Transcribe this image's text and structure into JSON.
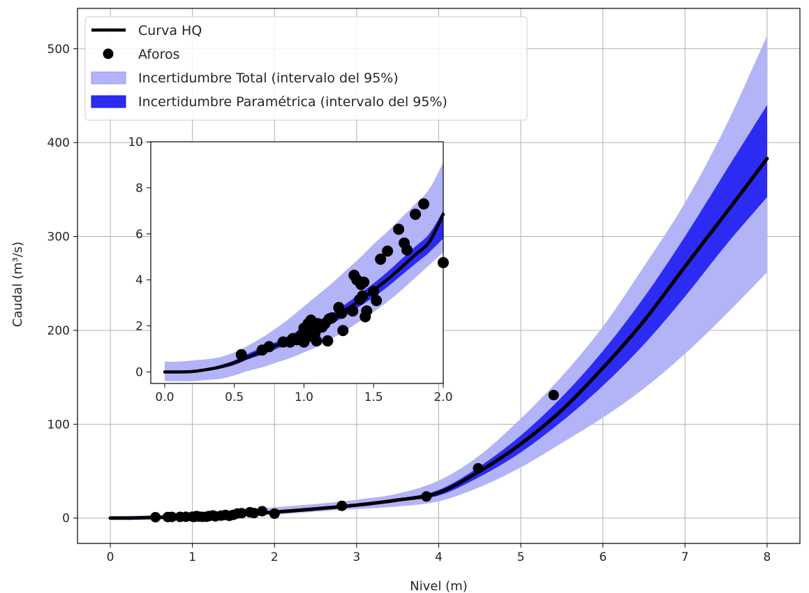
{
  "chart_data": [
    {
      "id": "main",
      "type": "line",
      "xlabel": "Nivel (m)",
      "ylabel": "Caudal (m³/s)",
      "xlim": [
        -0.4,
        8.4
      ],
      "ylim": [
        -27,
        543
      ],
      "xticks": [
        0,
        1,
        2,
        3,
        4,
        5,
        6,
        7,
        8
      ],
      "yticks": [
        0,
        100,
        200,
        300,
        400,
        500
      ],
      "grid": true,
      "legend_placement": "upper-left",
      "legend": [
        {
          "label": "Curva HQ",
          "kind": "line",
          "color": "#000000"
        },
        {
          "label": "Aforos",
          "kind": "marker",
          "color": "#000000"
        },
        {
          "label": "Incertidumbre Total (intervalo del 95%)",
          "kind": "patch",
          "color": "#b3b3f7"
        },
        {
          "label": "Incertidumbre Paramétrica (intervalo del 95%)",
          "kind": "patch",
          "color": "#2b2bf3"
        }
      ],
      "series": [
        {
          "name": "Incertidumbre Total (intervalo del 95%)",
          "kind": "band",
          "color": "#b3b3f7",
          "x": [
            0,
            0.25,
            0.5,
            1,
            1.5,
            2,
            2.5,
            3,
            3.5,
            4,
            4.5,
            5,
            5.5,
            6,
            6.5,
            7,
            7.5,
            8
          ],
          "lower": [
            -1,
            -1,
            0,
            0.6,
            1.7,
            3.6,
            6.8,
            9.6,
            12.3,
            17.8,
            33,
            54,
            80,
            107,
            138,
            175,
            217,
            262
          ],
          "upper": [
            2,
            2.5,
            3,
            5,
            8,
            11.5,
            15,
            19.5,
            26,
            40,
            67,
            106,
            151,
            204,
            268,
            336,
            418,
            514
          ]
        },
        {
          "name": "Incertidumbre Paramétrica (intervalo del 95%)",
          "kind": "band",
          "color": "#2b2bf3",
          "x": [
            0,
            0.25,
            0.5,
            1,
            1.5,
            2,
            2.5,
            3,
            3.5,
            4,
            4.5,
            5,
            5.5,
            6,
            6.5,
            7,
            7.5,
            8
          ],
          "lower": [
            0,
            0,
            0.3,
            1.3,
            3.2,
            5.6,
            9,
            12.8,
            17.8,
            24,
            44,
            70,
            103,
            141,
            185,
            236,
            291,
            342
          ],
          "upper": [
            0,
            0.2,
            0.6,
            1.8,
            4.1,
            7,
            10.6,
            14.8,
            20.6,
            30,
            55,
            88,
            129,
            178,
            235,
            300,
            370,
            440
          ]
        },
        {
          "name": "Curva HQ",
          "kind": "line",
          "color": "#000000",
          "x": [
            0,
            0.25,
            0.5,
            1,
            1.5,
            2,
            2.5,
            3,
            3.5,
            4,
            4.5,
            5,
            5.5,
            6,
            6.5,
            7,
            7.5,
            8
          ],
          "y": [
            0,
            0,
            0.5,
            1.6,
            3.6,
            6.3,
            9.8,
            13.8,
            19.2,
            27,
            50,
            79,
            115,
            160,
            210,
            268,
            325,
            383
          ]
        },
        {
          "name": "Aforos",
          "kind": "scatter",
          "color": "#000000",
          "points": [
            [
              0.55,
              0.9
            ],
            [
              0.7,
              1.1
            ],
            [
              0.75,
              1.2
            ],
            [
              0.85,
              1.3
            ],
            [
              0.92,
              1.4
            ],
            [
              1.0,
              1.5
            ],
            [
              1.02,
              1.2
            ],
            [
              1.05,
              2.1
            ],
            [
              1.08,
              1.6
            ],
            [
              1.12,
              1.3
            ],
            [
              1.17,
              1.4
            ],
            [
              1.2,
              2.1
            ],
            [
              1.25,
              2.8
            ],
            [
              1.28,
              1.8
            ],
            [
              1.35,
              2.6
            ],
            [
              1.4,
              3.3
            ],
            [
              1.45,
              2.4
            ],
            [
              1.5,
              3.5
            ],
            [
              1.55,
              4.9
            ],
            [
              1.6,
              5.2
            ],
            [
              1.7,
              6.2
            ],
            [
              1.75,
              5.4
            ],
            [
              1.85,
              7.3
            ],
            [
              2.0,
              4.7
            ],
            [
              2.82,
              13
            ],
            [
              3.85,
              23
            ],
            [
              4.48,
              53
            ],
            [
              5.4,
              131
            ]
          ]
        }
      ]
    },
    {
      "id": "inset",
      "type": "line",
      "xlim": [
        -0.1,
        2.0
      ],
      "ylim": [
        -0.5,
        10
      ],
      "xticks": [
        0.0,
        0.5,
        1.0,
        1.5,
        2.0
      ],
      "xtick_labels": [
        "0.0",
        "0.5",
        "1.0",
        "1.5",
        "2.0"
      ],
      "yticks": [
        0,
        2,
        4,
        6,
        8,
        10
      ],
      "grid": false,
      "series": [
        {
          "name": "Incertidumbre Total (intervalo del 95%)",
          "kind": "band",
          "color": "#b3b3f7",
          "x": [
            0,
            0.1,
            0.2,
            0.3,
            0.4,
            0.5,
            0.6,
            0.7,
            0.8,
            0.9,
            1.0,
            1.1,
            1.2,
            1.3,
            1.4,
            1.5,
            1.6,
            1.7,
            1.8,
            1.9,
            2.0
          ],
          "lower": [
            -0.4,
            -0.4,
            -0.4,
            -0.35,
            -0.3,
            -0.15,
            0.05,
            0.2,
            0.4,
            0.6,
            0.85,
            1.1,
            1.45,
            1.8,
            2.2,
            2.6,
            3.05,
            3.55,
            4.1,
            4.65,
            5.2
          ],
          "upper": [
            0.45,
            0.45,
            0.5,
            0.55,
            0.65,
            0.85,
            1.15,
            1.5,
            1.9,
            2.35,
            2.85,
            3.35,
            3.85,
            4.4,
            4.95,
            5.55,
            6.1,
            6.7,
            7.3,
            7.95,
            9.1
          ]
        },
        {
          "name": "Incertidumbre Paramétrica (intervalo del 95%)",
          "kind": "band",
          "color": "#2b2bf3",
          "x": [
            0,
            0.1,
            0.2,
            0.3,
            0.4,
            0.5,
            0.6,
            0.7,
            0.8,
            0.9,
            1.0,
            1.1,
            1.2,
            1.3,
            1.4,
            1.5,
            1.6,
            1.7,
            1.8,
            1.9,
            2.0
          ],
          "lower": [
            0,
            0,
            0,
            0.05,
            0.15,
            0.3,
            0.55,
            0.75,
            1.0,
            1.25,
            1.5,
            1.8,
            2.1,
            2.45,
            2.85,
            3.25,
            3.7,
            4.2,
            4.7,
            5.2,
            5.8
          ],
          "upper": [
            0,
            0,
            0.05,
            0.15,
            0.3,
            0.5,
            0.8,
            1.05,
            1.3,
            1.6,
            1.9,
            2.2,
            2.55,
            2.95,
            3.4,
            3.85,
            4.35,
            4.9,
            5.45,
            6.0,
            7.0
          ]
        },
        {
          "name": "Curva HQ",
          "kind": "line",
          "color": "#000000",
          "x": [
            0,
            0.1,
            0.2,
            0.3,
            0.4,
            0.5,
            0.6,
            0.7,
            0.8,
            0.9,
            1.0,
            1.1,
            1.2,
            1.3,
            1.4,
            1.5,
            1.6,
            1.7,
            1.8,
            1.9,
            2.0
          ],
          "y": [
            0,
            0,
            0.02,
            0.1,
            0.22,
            0.4,
            0.65,
            0.9,
            1.15,
            1.42,
            1.7,
            2.0,
            2.33,
            2.7,
            3.1,
            3.55,
            4.02,
            4.55,
            5.1,
            5.65,
            6.85
          ]
        },
        {
          "name": "Aforos",
          "kind": "scatter",
          "color": "#000000",
          "points": [
            [
              0.55,
              0.75
            ],
            [
              0.7,
              0.95
            ],
            [
              0.75,
              1.1
            ],
            [
              0.85,
              1.3
            ],
            [
              0.9,
              1.3
            ],
            [
              0.92,
              1.45
            ],
            [
              0.95,
              1.4
            ],
            [
              0.98,
              1.6
            ],
            [
              1.0,
              1.3
            ],
            [
              1.0,
              1.9
            ],
            [
              1.02,
              1.5
            ],
            [
              1.03,
              2.1
            ],
            [
              1.05,
              2.25
            ],
            [
              1.05,
              1.8
            ],
            [
              1.08,
              1.7
            ],
            [
              1.09,
              1.35
            ],
            [
              1.1,
              2.1
            ],
            [
              1.12,
              2.0
            ],
            [
              1.13,
              1.95
            ],
            [
              1.15,
              2.1
            ],
            [
              1.17,
              1.35
            ],
            [
              1.18,
              2.3
            ],
            [
              1.2,
              2.35
            ],
            [
              1.25,
              2.8
            ],
            [
              1.27,
              2.55
            ],
            [
              1.28,
              1.8
            ],
            [
              1.35,
              2.65
            ],
            [
              1.36,
              4.2
            ],
            [
              1.38,
              4.0
            ],
            [
              1.4,
              3.15
            ],
            [
              1.41,
              3.8
            ],
            [
              1.42,
              3.3
            ],
            [
              1.43,
              3.9
            ],
            [
              1.44,
              2.4
            ],
            [
              1.45,
              2.65
            ],
            [
              1.5,
              3.5
            ],
            [
              1.52,
              3.1
            ],
            [
              1.55,
              4.9
            ],
            [
              1.6,
              5.25
            ],
            [
              1.68,
              6.2
            ],
            [
              1.72,
              5.6
            ],
            [
              1.74,
              5.3
            ],
            [
              1.8,
              6.85
            ],
            [
              1.86,
              7.3
            ],
            [
              2.0,
              4.75
            ]
          ]
        }
      ]
    }
  ]
}
